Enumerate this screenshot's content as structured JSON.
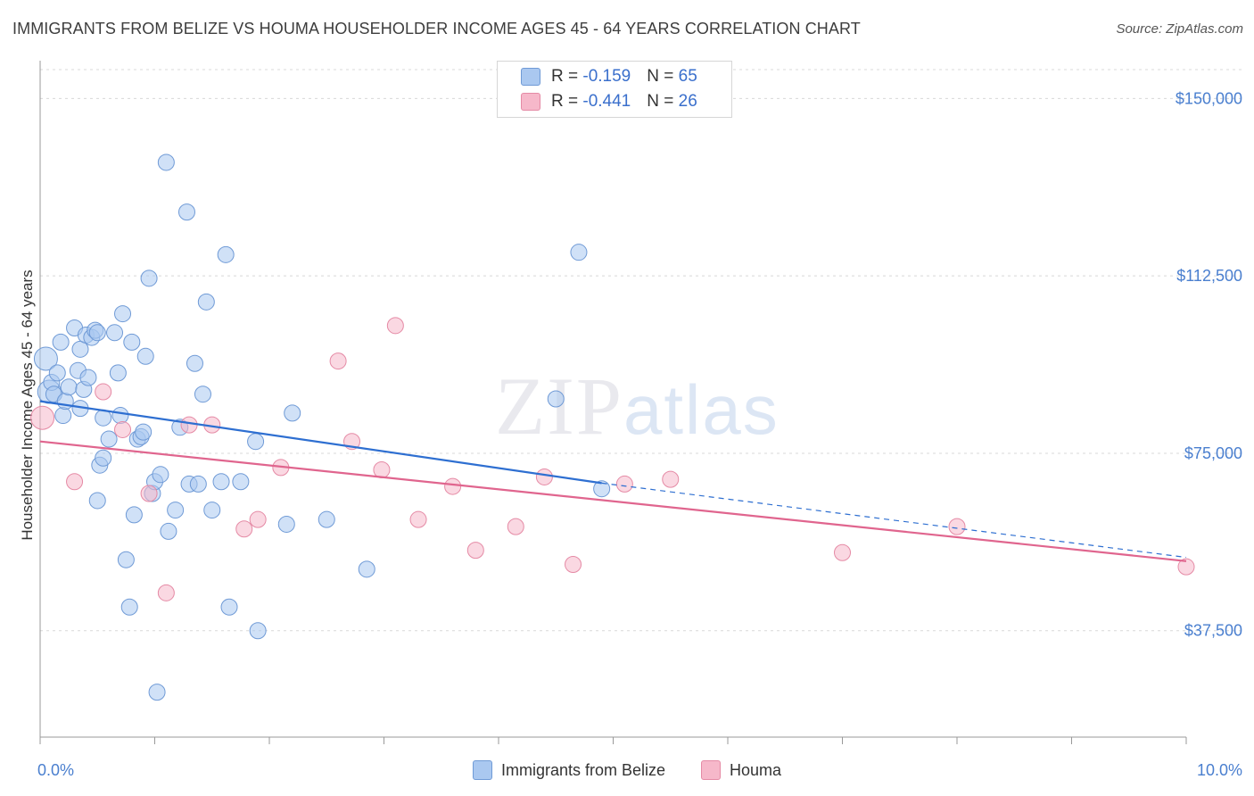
{
  "title": "IMMIGRANTS FROM BELIZE VS HOUMA HOUSEHOLDER INCOME AGES 45 - 64 YEARS CORRELATION CHART",
  "source": "Source: ZipAtlas.com",
  "watermark": {
    "zip": "ZIP",
    "atlas": "atlas"
  },
  "legend": {
    "rows": [
      {
        "r_label": "R = ",
        "r_value": "-0.159",
        "n_label": "N = ",
        "n_value": "65",
        "color": "#aac8f0"
      },
      {
        "r_label": "R = ",
        "r_value": "-0.441",
        "n_label": "N = ",
        "n_value": "26",
        "color": "#f6b8ca"
      }
    ]
  },
  "bottom_legend": [
    {
      "label": "Immigrants from Belize",
      "color": "#aac8f0"
    },
    {
      "label": "Houma",
      "color": "#f6b8ca"
    }
  ],
  "chart_data": {
    "type": "scatter",
    "ylabel": "Householder Income Ages 45 - 64 years",
    "xlim": [
      0,
      10
    ],
    "ylim": [
      15000,
      158000
    ],
    "y_ticks": [
      {
        "value": 37500,
        "label": "$37,500"
      },
      {
        "value": 75000,
        "label": "$75,000"
      },
      {
        "value": 112500,
        "label": "$112,500"
      },
      {
        "value": 150000,
        "label": "$150,000"
      }
    ],
    "x_tick_labels": [
      {
        "value": 0,
        "label": "0.0%"
      },
      {
        "value": 10,
        "label": "10.0%"
      }
    ],
    "grid": true,
    "series": [
      {
        "name": "Immigrants from Belize",
        "color": "#aac8f0",
        "stroke": "#6f9ad6",
        "line_color": "#2e6fd1",
        "trend": {
          "x0": 0,
          "y0": 86000,
          "x1": 4.9,
          "y1": 68700,
          "dash_x1": 10,
          "dash_y1": 53000
        },
        "points": [
          [
            0.05,
            95000
          ],
          [
            0.08,
            88000
          ],
          [
            0.1,
            90000
          ],
          [
            0.12,
            87500
          ],
          [
            0.15,
            92000
          ],
          [
            0.18,
            98500
          ],
          [
            0.2,
            83000
          ],
          [
            0.22,
            86000
          ],
          [
            0.25,
            89000
          ],
          [
            0.3,
            101500
          ],
          [
            0.33,
            92500
          ],
          [
            0.35,
            97000
          ],
          [
            0.35,
            84500
          ],
          [
            0.38,
            88500
          ],
          [
            0.4,
            100000
          ],
          [
            0.42,
            91000
          ],
          [
            0.45,
            99500
          ],
          [
            0.48,
            101000
          ],
          [
            0.5,
            65000
          ],
          [
            0.5,
            100500
          ],
          [
            0.52,
            72500
          ],
          [
            0.55,
            74000
          ],
          [
            0.55,
            82500
          ],
          [
            0.6,
            78000
          ],
          [
            0.65,
            100500
          ],
          [
            0.68,
            92000
          ],
          [
            0.7,
            83000
          ],
          [
            0.72,
            104500
          ],
          [
            0.75,
            52500
          ],
          [
            0.78,
            42500
          ],
          [
            0.8,
            98500
          ],
          [
            0.82,
            62000
          ],
          [
            0.85,
            78000
          ],
          [
            0.88,
            78500
          ],
          [
            0.9,
            79500
          ],
          [
            0.92,
            95500
          ],
          [
            0.95,
            112000
          ],
          [
            0.98,
            66500
          ],
          [
            1.0,
            69000
          ],
          [
            1.02,
            24500
          ],
          [
            1.05,
            70500
          ],
          [
            1.1,
            136500
          ],
          [
            1.12,
            58500
          ],
          [
            1.18,
            63000
          ],
          [
            1.22,
            80500
          ],
          [
            1.28,
            126000
          ],
          [
            1.3,
            68500
          ],
          [
            1.35,
            94000
          ],
          [
            1.38,
            68500
          ],
          [
            1.42,
            87500
          ],
          [
            1.45,
            107000
          ],
          [
            1.5,
            63000
          ],
          [
            1.58,
            69000
          ],
          [
            1.62,
            117000
          ],
          [
            1.65,
            42500
          ],
          [
            1.75,
            69000
          ],
          [
            1.88,
            77500
          ],
          [
            1.9,
            37500
          ],
          [
            2.15,
            60000
          ],
          [
            2.2,
            83500
          ],
          [
            2.5,
            61000
          ],
          [
            2.85,
            50500
          ],
          [
            4.5,
            86500
          ],
          [
            4.7,
            117500
          ],
          [
            4.9,
            67500
          ]
        ]
      },
      {
        "name": "Houma",
        "color": "#f6b8ca",
        "stroke": "#e58aa5",
        "line_color": "#e0658e",
        "trend": {
          "x0": 0,
          "y0": 77500,
          "x1": 10,
          "y1": 52200
        },
        "points": [
          [
            0.02,
            82500
          ],
          [
            0.3,
            69000
          ],
          [
            0.55,
            88000
          ],
          [
            0.72,
            80000
          ],
          [
            0.95,
            66500
          ],
          [
            1.1,
            45500
          ],
          [
            1.3,
            81000
          ],
          [
            1.5,
            81000
          ],
          [
            1.78,
            59000
          ],
          [
            1.9,
            61000
          ],
          [
            2.1,
            72000
          ],
          [
            2.6,
            94500
          ],
          [
            2.72,
            77500
          ],
          [
            2.98,
            71500
          ],
          [
            3.1,
            102000
          ],
          [
            3.3,
            61000
          ],
          [
            3.6,
            68000
          ],
          [
            3.8,
            54500
          ],
          [
            4.15,
            59500
          ],
          [
            4.4,
            70000
          ],
          [
            4.65,
            51500
          ],
          [
            5.1,
            68500
          ],
          [
            5.5,
            69500
          ],
          [
            7.0,
            54000
          ],
          [
            8.0,
            59500
          ],
          [
            10.0,
            51000
          ]
        ]
      }
    ]
  }
}
